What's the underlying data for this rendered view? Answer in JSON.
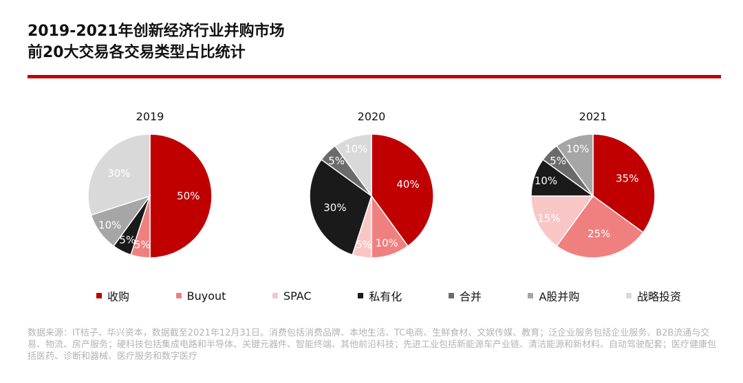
{
  "title_lines": [
    "2019-2021年创新经济行业并购市场",
    "前20大交易各交易类型占比统计"
  ],
  "colors": {
    "accent": "#c00000",
    "categories": [
      "#c00000",
      "#f08080",
      "#f9c6c6",
      "#1a1a1a",
      "#6b6b6b",
      "#a6a6a6",
      "#d9d9d9"
    ],
    "label_colors": [
      "#ffffff",
      "#ffffff",
      "#ffffff",
      "#ffffff",
      "#ffffff",
      "#ffffff",
      "#ffffff"
    ]
  },
  "chart_data": {
    "type": "pie",
    "categories": [
      "收购",
      "Buyout",
      "SPAC",
      "私有化",
      "合并",
      "A股并购",
      "战略投资"
    ],
    "charts": [
      {
        "title": "2019",
        "values": [
          50,
          5,
          0,
          5,
          0,
          10,
          30
        ],
        "labels": [
          "50%",
          "5%",
          "",
          "5%",
          "",
          "10%",
          "30%"
        ]
      },
      {
        "title": "2020",
        "values": [
          40,
          10,
          5,
          30,
          5,
          0,
          10
        ],
        "labels": [
          "40%",
          "10%",
          "5%",
          "30%",
          "5%",
          "",
          "10%"
        ]
      },
      {
        "title": "2021",
        "values": [
          35,
          25,
          15,
          10,
          5,
          10,
          0
        ],
        "labels": [
          "35%",
          "25%",
          "15%",
          "10%",
          "5%",
          "10%",
          ""
        ]
      }
    ],
    "legend_position": "bottom"
  },
  "source_note": "数据来源：IT桔子、华兴资本，数据截至2021年12月31日。消费包括消费品牌、本地生活、TC电商、生鲜食材、文娱传媒、教育；泛企业服务包括企业服务、B2B流通与交易、物流、房产服务；硬科技包括集成电路和半导体、关键元器件、智能终端、其他前沿科技；先进工业包括新能源车产业链、清洁能源和新材料、自动驾驶配套；医疗健康包括医药、诊断和器械、医疗服务和数字医疗"
}
